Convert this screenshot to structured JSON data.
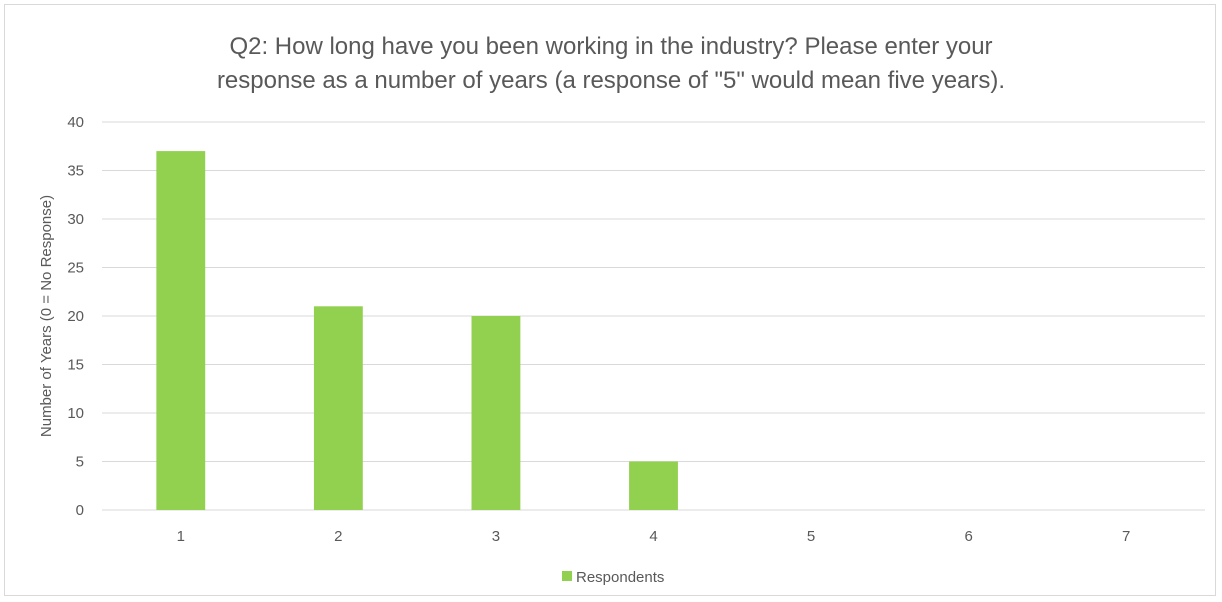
{
  "chart_data": {
    "type": "bar",
    "title": "Q2: How long have you been working in the industry? Please enter your response as a number of years (a response of \"5\" would mean five years).",
    "title_lines": [
      "Q2: How long have you been working in the industry? Please enter your",
      "response as a number of years (a response of \"5\" would mean five years)."
    ],
    "xlabel": "",
    "ylabel": "Number of Years (0 = No Response)",
    "categories": [
      "1",
      "2",
      "3",
      "4",
      "5",
      "6",
      "7"
    ],
    "series": [
      {
        "name": "Respondents",
        "color": "#92d050",
        "values": [
          37,
          21,
          20,
          5,
          0,
          0,
          0
        ]
      }
    ],
    "ylim": [
      0,
      40
    ],
    "yticks": [
      0,
      5,
      10,
      15,
      20,
      25,
      30,
      35,
      40
    ],
    "grid": true,
    "legend_position": "bottom"
  }
}
